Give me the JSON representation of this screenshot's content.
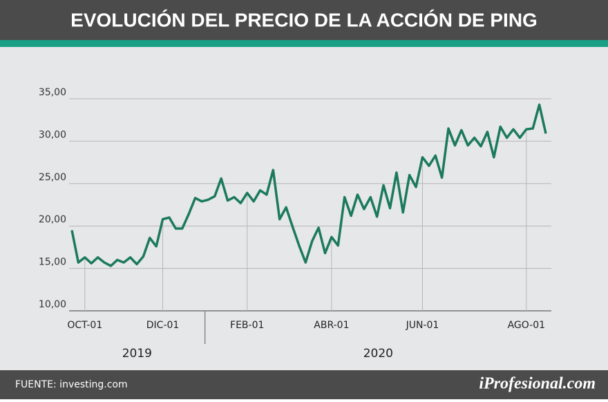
{
  "chart_data": {
    "type": "line",
    "title": "EVOLUCIÓN DEL PRECIO DE LA ACCIÓN DE PING",
    "categories": [
      null,
      null,
      "OCT-01",
      null,
      null,
      null,
      null,
      null,
      null,
      null,
      null,
      null,
      null,
      null,
      "DIC-01",
      null,
      null,
      null,
      null,
      null,
      null,
      null,
      null,
      null,
      null,
      null,
      null,
      "FEB-01",
      null,
      null,
      null,
      null,
      null,
      null,
      null,
      null,
      null,
      null,
      null,
      null,
      "ABR-01",
      null,
      null,
      null,
      null,
      null,
      null,
      null,
      null,
      null,
      null,
      null,
      null,
      null,
      "JUN-01",
      null,
      null,
      null,
      null,
      null,
      null,
      null,
      null,
      null,
      null,
      null,
      null,
      null,
      null,
      null,
      "AGO-01",
      null,
      null,
      null
    ],
    "series": [
      {
        "name": "PING",
        "color": "#1b7a5c",
        "values": [
          19.5,
          15.7,
          16.3,
          15.6,
          16.3,
          15.7,
          15.3,
          16.0,
          15.7,
          16.3,
          15.5,
          16.4,
          18.6,
          17.6,
          20.8,
          21.0,
          19.7,
          19.7,
          21.4,
          23.3,
          22.9,
          23.1,
          23.5,
          25.6,
          23.0,
          23.4,
          22.7,
          23.9,
          22.9,
          24.2,
          23.7,
          26.6,
          20.8,
          22.2,
          19.9,
          17.7,
          15.7,
          18.2,
          19.8,
          16.8,
          18.7,
          17.7,
          23.4,
          21.2,
          23.7,
          22.0,
          23.4,
          21.1,
          24.8,
          22.1,
          26.3,
          21.6,
          26.0,
          24.6,
          28.1,
          27.1,
          28.3,
          25.7,
          31.5,
          29.5,
          31.3,
          29.5,
          30.4,
          29.4,
          31.1,
          28.1,
          31.7,
          30.4,
          31.4,
          30.4,
          31.4,
          31.5,
          34.3,
          30.9
        ]
      }
    ],
    "x_groups": [
      "2019",
      "2020"
    ],
    "ylim": [
      10,
      35
    ],
    "yticks": [
      {
        "value": 10,
        "label": "10,00"
      },
      {
        "value": 15,
        "label": "15,00"
      },
      {
        "value": 20,
        "label": "20,00"
      },
      {
        "value": 25,
        "label": "25,00"
      },
      {
        "value": 30,
        "label": "30,00"
      },
      {
        "value": 35,
        "label": "35,00"
      }
    ],
    "grid": true
  },
  "footer": {
    "source": "FUENTE: investing.com",
    "brand": "iProfesional.com"
  }
}
